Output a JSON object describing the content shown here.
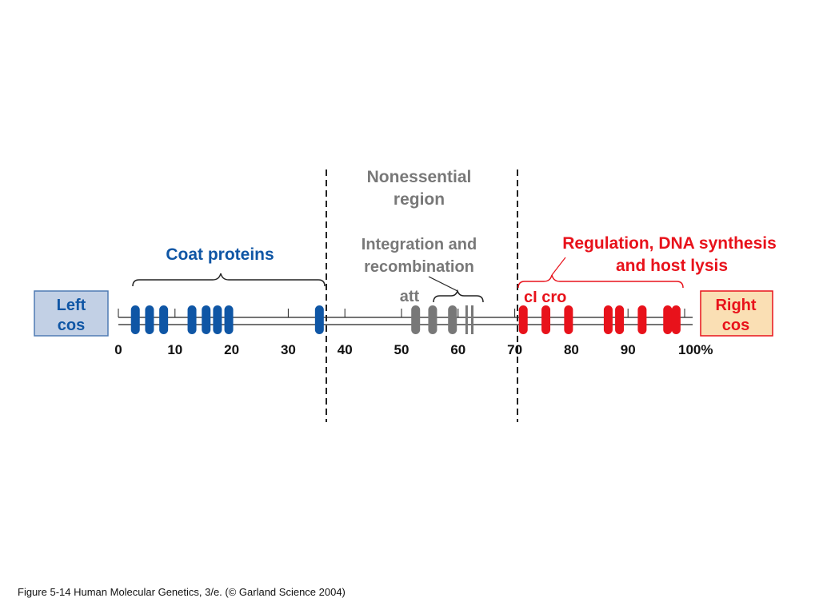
{
  "region_labels": {
    "nonessential_line1": "Nonessential",
    "nonessential_line2": "region",
    "coat_proteins": "Coat proteins",
    "integration_line1": "Integration and",
    "integration_line2": "recombination",
    "att": "att",
    "regulation_line1": "Regulation, DNA synthesis",
    "regulation_line2": "and host lysis",
    "ci_cro": "cI cro"
  },
  "end_boxes": {
    "left": {
      "line1": "Left",
      "line2": "cos"
    },
    "right": {
      "line1": "Right",
      "line2": "cos"
    }
  },
  "axis": {
    "min": 0,
    "max": 100,
    "tick_labels": [
      "0",
      "10",
      "20",
      "30",
      "40",
      "50",
      "60",
      "70",
      "80",
      "90",
      "100%"
    ],
    "tick_values": [
      0,
      10,
      20,
      30,
      40,
      50,
      60,
      70,
      80,
      90,
      100
    ]
  },
  "boundaries_percent": [
    36.5,
    70
  ],
  "genes": {
    "coat": [
      3,
      5.5,
      8,
      13,
      15.5,
      17.5,
      19.5,
      35.5
    ],
    "integration": [
      52.5,
      55.5,
      59
    ],
    "integration_thin": [
      61.5,
      62.5
    ],
    "regulation": [
      71.5,
      75.5,
      79.5,
      86.5,
      88.5,
      92.5,
      97,
      98.5
    ]
  },
  "colors": {
    "blue": "#0f56a5",
    "gray": "#787878",
    "red": "#e8121b",
    "left_box_fill": "#c2d0e5",
    "left_box_stroke": "#4f7bb3",
    "right_box_fill": "#fadfb4",
    "right_box_stroke": "#e8121b"
  },
  "caption": "Figure 5-14  Human Molecular Genetics, 3/e.  (© Garland Science 2004)"
}
